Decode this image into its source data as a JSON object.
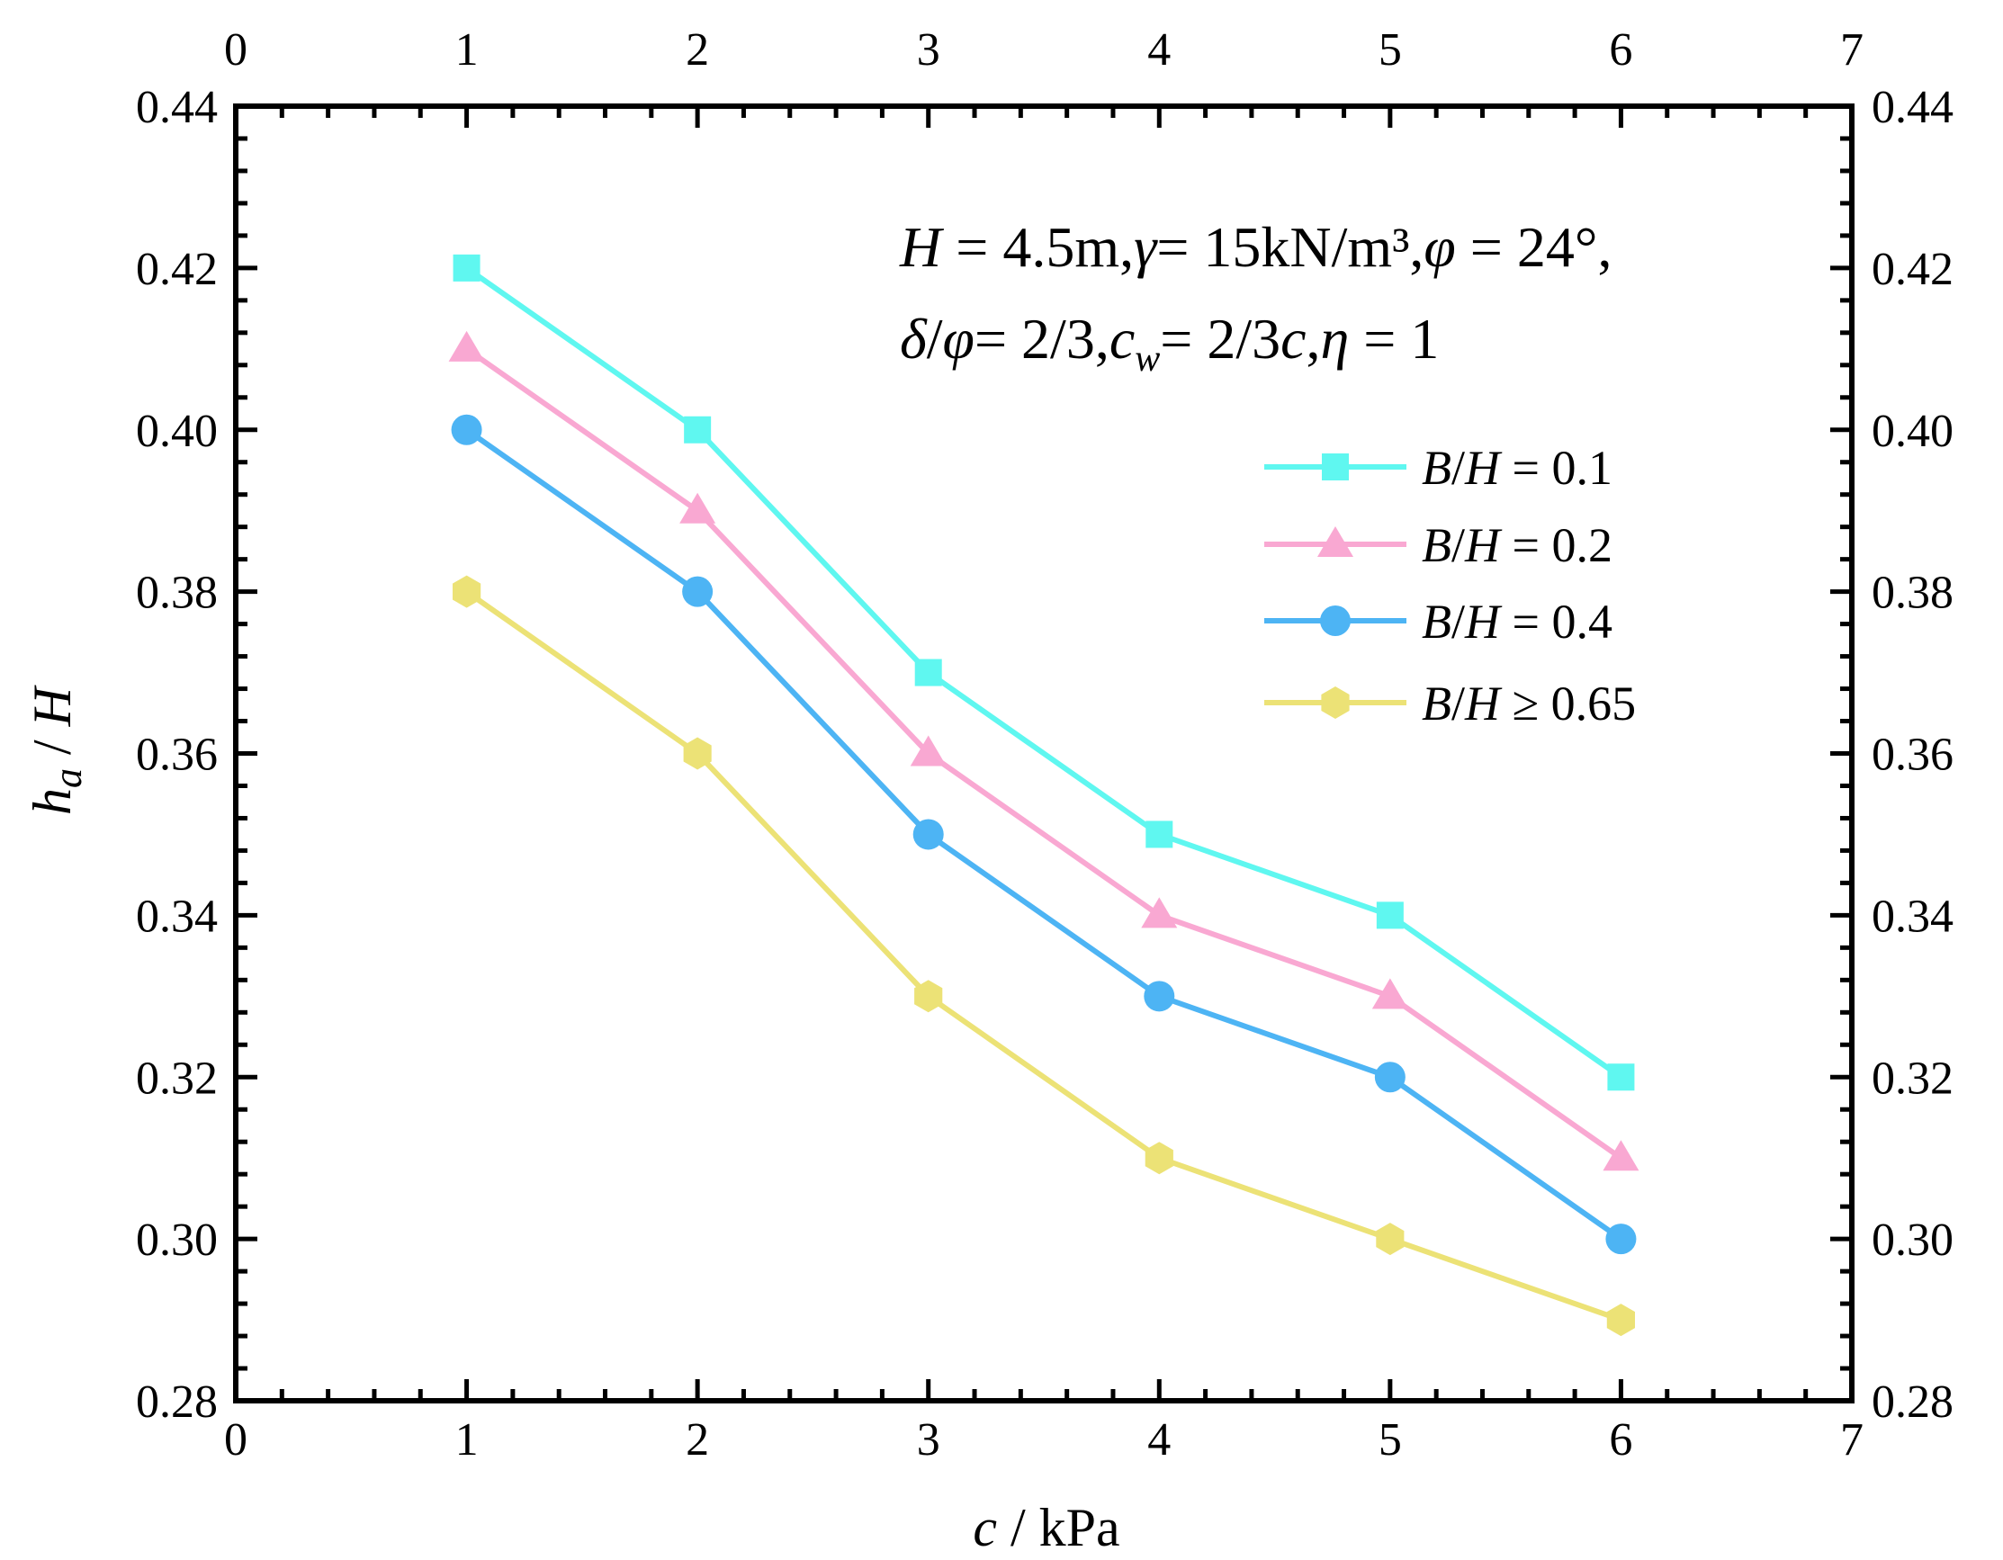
{
  "chart_data": {
    "type": "line",
    "title": "",
    "xlabel": "c / kPa",
    "xlabel_parts": {
      "var": "c",
      "rest": " / kPa"
    },
    "ylabel": "h_a / H",
    "ylabel_parts": {
      "h": "h",
      "sub": "a",
      "rest": " / ",
      "H": "H"
    },
    "xlim": [
      0,
      7
    ],
    "ylim": [
      0.28,
      0.44
    ],
    "x_ticks": [
      0,
      1,
      2,
      3,
      4,
      5,
      6,
      7
    ],
    "y_ticks": [
      0.28,
      0.3,
      0.32,
      0.34,
      0.36,
      0.38,
      0.4,
      0.42,
      0.44
    ],
    "x_tick_labels": [
      "0",
      "1",
      "2",
      "3",
      "4",
      "5",
      "6",
      "7"
    ],
    "y_tick_labels": [
      "0.28",
      "0.30",
      "0.32",
      "0.34",
      "0.36",
      "0.38",
      "0.40",
      "0.42",
      "0.44"
    ],
    "grid": false,
    "legend_position": "right",
    "annotation": {
      "line1": "H = 4.5m,γ= 15kN/m³,φ = 24°,",
      "line2": "δ/φ = 2/3,c_w= 2/3c,η = 1",
      "line1_parts": {
        "H": "H",
        "t1": " = 4.5m,",
        "gamma": "γ",
        "t2": "= 15kN/m³,",
        "phi": "φ",
        "t3": " = 24°,"
      },
      "line2_parts": {
        "delta": "δ",
        "slash": "/",
        "phi": "φ",
        "t1": "= 2/3,",
        "c": "c",
        "w": "w",
        "t2": "= 2/3",
        "c2": "c",
        "t3": ",",
        "eta": "η",
        "t4": " = 1"
      }
    },
    "x": [
      1,
      2,
      3,
      4,
      5,
      6
    ],
    "series": [
      {
        "name": "B/H = 0.1",
        "name_parts": {
          "b": "B",
          "s": "/",
          "h": "H",
          "rest": " = 0.1"
        },
        "marker": "square",
        "color": "#5ff7f0",
        "values": [
          0.42,
          0.4,
          0.37,
          0.35,
          0.34,
          0.32
        ]
      },
      {
        "name": "B/H = 0.2",
        "name_parts": {
          "b": "B",
          "s": "/",
          "h": "H",
          "rest": " = 0.2"
        },
        "marker": "triangle",
        "color": "#f9a8d2",
        "values": [
          0.41,
          0.39,
          0.36,
          0.34,
          0.33,
          0.31
        ]
      },
      {
        "name": "B/H = 0.4",
        "name_parts": {
          "b": "B",
          "s": "/",
          "h": "H",
          "rest": " = 0.4"
        },
        "marker": "circle",
        "color": "#4db4f4",
        "values": [
          0.4,
          0.38,
          0.35,
          0.33,
          0.32,
          0.3
        ]
      },
      {
        "name": "B/H ≥ 0.65",
        "name_parts": {
          "b": "B",
          "s": "/",
          "h": "H",
          "rest": " ≥ 0.65"
        },
        "marker": "hexagon",
        "color": "#ece276",
        "values": [
          0.38,
          0.36,
          0.33,
          0.31,
          0.3,
          0.29
        ]
      }
    ]
  }
}
